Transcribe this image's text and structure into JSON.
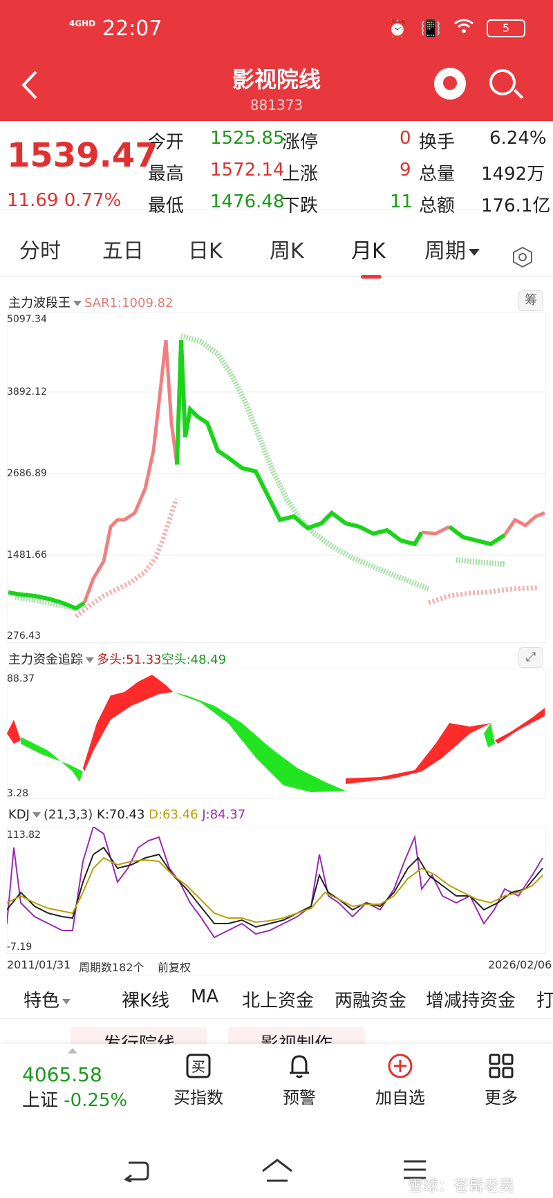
{
  "status_bar": {
    "network": "4GHD",
    "time": "22:07",
    "battery": "5"
  },
  "nav": {
    "title": "影视院线",
    "code": "881373"
  },
  "quote": {
    "price": "1539.47",
    "change": "11.69 0.77%",
    "rows": [
      {
        "l1": "今开",
        "v1": "1525.85",
        "l2": "涨停",
        "v2": "0",
        "l3": "换手",
        "v3": "6.24%"
      },
      {
        "l1": "最高",
        "v1": "1572.14",
        "l2": "上涨",
        "v2": "9",
        "l3": "总量",
        "v3": "1492万"
      },
      {
        "l1": "最低",
        "v1": "1476.48",
        "l2": "下跌",
        "v2": "11",
        "l3": "总额",
        "v3": "176.1亿"
      }
    ]
  },
  "tabs": [
    {
      "label": "分时"
    },
    {
      "label": "五日"
    },
    {
      "label": "日K"
    },
    {
      "label": "周K"
    },
    {
      "label": "月K"
    },
    {
      "label": "周期"
    }
  ],
  "panel_main": {
    "indicator": "主力波段王",
    "sar": "SAR1:1009.82",
    "chip": "筹",
    "y_labels": [
      "5097.34",
      "3892.12",
      "2686.89",
      "1481.66",
      "276.43"
    ]
  },
  "panel_money": {
    "indicator": "主力资金追踪",
    "bull": "多头:51.33",
    "bear": "空头:48.49",
    "y_labels": [
      "88.37",
      "3.28"
    ]
  },
  "panel_kdj": {
    "indicator": "KDJ",
    "params": "(21,3,3)",
    "k": "K:70.43",
    "d": "D:63.46",
    "j": "J:84.37",
    "y_labels": [
      "113.82",
      "-7.19"
    ]
  },
  "bottom_info": {
    "start": "2011/01/31",
    "periods": "周期数182个",
    "adjust": "前复权",
    "end": "2026/02/06"
  },
  "features": [
    "特色",
    "裸K线",
    "MA",
    "北上资金",
    "两融资金",
    "增减持资金",
    "打"
  ],
  "related": [
    "发行院线",
    "影视制作"
  ],
  "action_bar": {
    "index_value": "4065.58",
    "index_name": "上证",
    "index_change": "-0.25%",
    "items": [
      "买指数",
      "预警",
      "加自选",
      "更多"
    ]
  },
  "watermark": "雪球：苍髯老吴",
  "colors": {
    "brand": "#e8383d",
    "up": "#e03030",
    "down": "#1a9a1a"
  }
}
